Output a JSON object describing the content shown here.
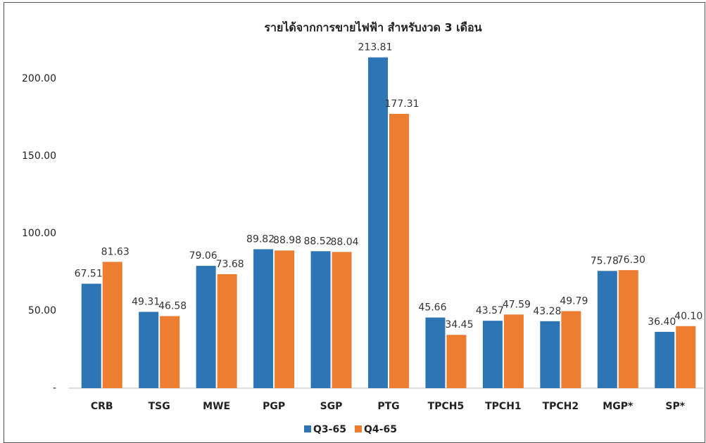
{
  "chart_data": {
    "type": "bar",
    "title": "รายได้จากการขายไฟฟ้า สำหรับงวด 3 เดือน",
    "categories": [
      "CRB",
      "TSG",
      "MWE",
      "PGP",
      "SGP",
      "PTG",
      "TPCH5",
      "TPCH1",
      "TPCH2",
      "MGP*",
      "SP*"
    ],
    "series": [
      {
        "name": "Q3-65",
        "color": "#2e75b6",
        "values": [
          67.51,
          49.31,
          79.06,
          89.82,
          88.52,
          213.81,
          45.66,
          43.57,
          43.28,
          75.78,
          36.4
        ],
        "value_labels": [
          "67.51",
          "49.31",
          "79.06",
          "89.82",
          "88.52",
          "213.81",
          "45.66",
          "43.57",
          "43.28",
          "75.78",
          "36.40"
        ]
      },
      {
        "name": "Q4-65",
        "color": "#ed7d31",
        "values": [
          81.63,
          46.58,
          73.68,
          88.98,
          88.04,
          177.31,
          34.45,
          47.59,
          49.79,
          76.3,
          40.1
        ],
        "value_labels": [
          "81.63",
          "46.58",
          "73.68",
          "88.98",
          "88.04",
          "177.31",
          "34.45",
          "47.59",
          "49.79",
          "76.30",
          "40.10"
        ]
      }
    ],
    "ylim": [
      0,
      230
    ],
    "yticks": [
      {
        "value": 0,
        "label": "-"
      },
      {
        "value": 50,
        "label": "50.00"
      },
      {
        "value": 100,
        "label": "100.00"
      },
      {
        "value": 150,
        "label": "150.00"
      },
      {
        "value": 200,
        "label": "200.00"
      }
    ],
    "grid": false,
    "legend": "bottom"
  }
}
